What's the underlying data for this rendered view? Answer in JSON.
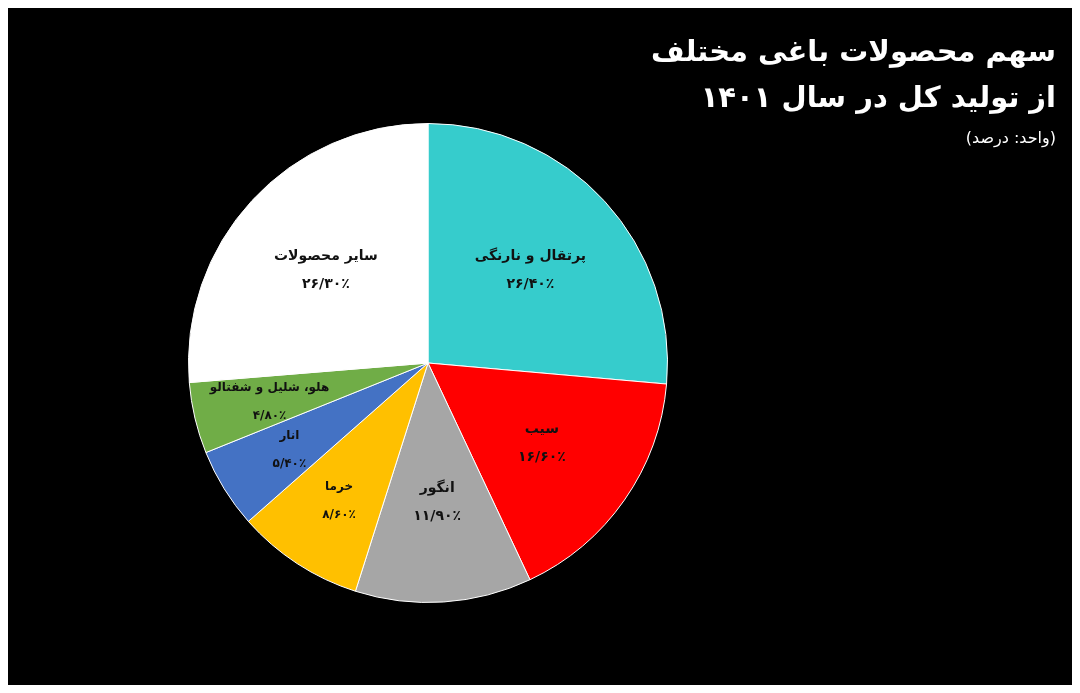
{
  "chart_data": {
    "type": "pie",
    "title": "سهم محصولات باغی مختلف از تولید کل در سال ۱۴۰۱",
    "subtitle": "(واحد: درصد)",
    "categories": [
      "پرتقال و نارنگی",
      "سیب",
      "انگور",
      "خرما",
      "انار",
      "هلو، شلیل و شفتالو",
      "سایر محصولات"
    ],
    "values": [
      26.4,
      16.6,
      11.9,
      8.6,
      5.4,
      4.8,
      26.3
    ],
    "value_labels": [
      "۲۶/۴۰٪",
      "۱۶/۶۰٪",
      "۱۱/۹۰٪",
      "۸/۶۰٪",
      "۵/۴۰٪",
      "۴/۸۰٪",
      "۲۶/۳۰٪"
    ],
    "colors": [
      "#36cccc",
      "#ff0000",
      "#a6a6a6",
      "#ffc000",
      "#4472c4",
      "#70ad47",
      "#ffffff"
    ],
    "legend": false
  }
}
